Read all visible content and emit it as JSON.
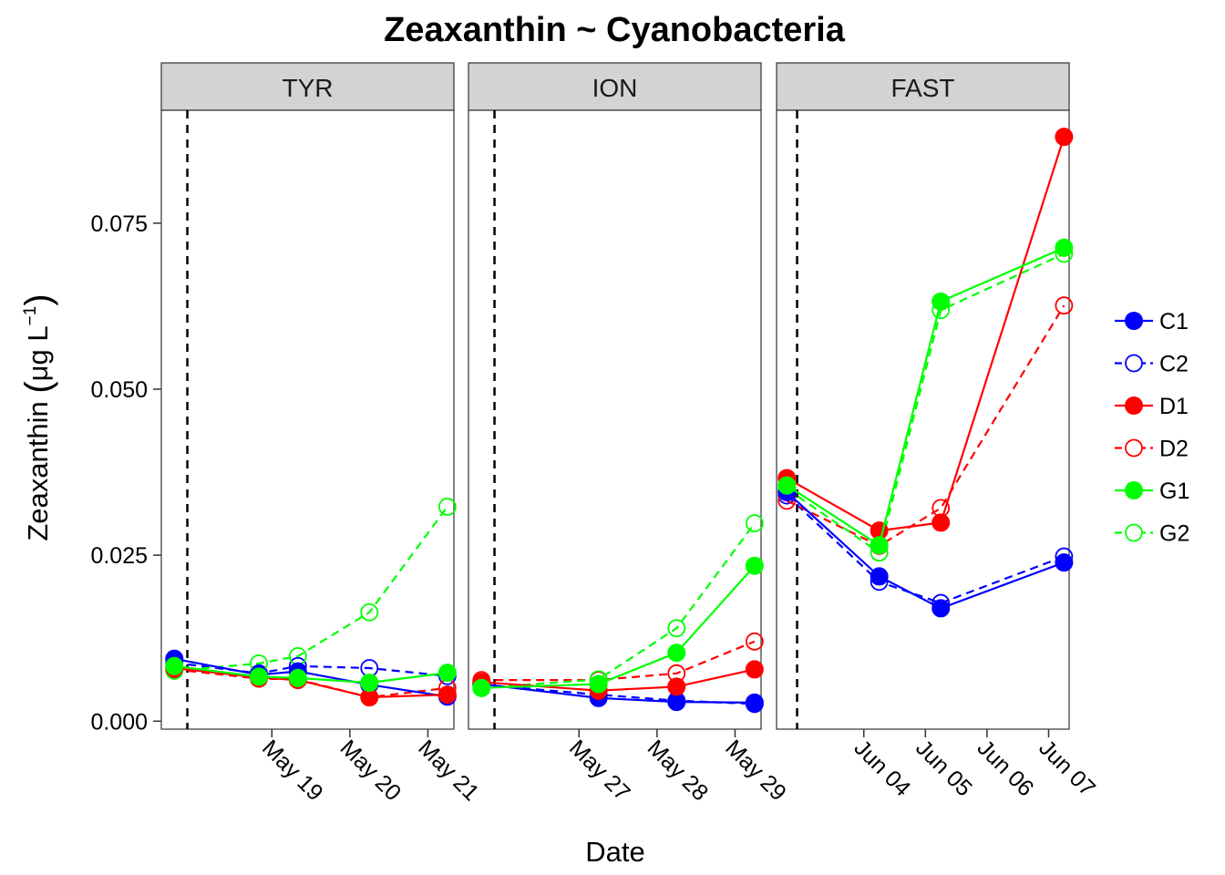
{
  "chart_data": {
    "type": "line",
    "title": "Zeaxanthin ~ Cyanobacteria",
    "xlabel": "Date",
    "ylabel": "Zeaxanthin (μg L−1)",
    "ylabel_parts": {
      "main": "Zeaxanthin ",
      "open": "(",
      "unit": "μg L",
      "sup": "−1",
      "close": ")"
    },
    "y_ticks": [
      "0.000",
      "0.025",
      "0.050",
      "0.075"
    ],
    "ylim": [
      -0.0012,
      0.092
    ],
    "grid": false,
    "legend_position": "right",
    "legend_items": [
      {
        "label": "C1",
        "color": "#0000ff",
        "filled": true,
        "dashed": false
      },
      {
        "label": "C2",
        "color": "#0000ff",
        "filled": false,
        "dashed": true
      },
      {
        "label": "D1",
        "color": "#ff0000",
        "filled": true,
        "dashed": false
      },
      {
        "label": "D2",
        "color": "#ff0000",
        "filled": false,
        "dashed": true
      },
      {
        "label": "G1",
        "color": "#00ff00",
        "filled": true,
        "dashed": false
      },
      {
        "label": "G2",
        "color": "#00ff00",
        "filled": false,
        "dashed": true
      }
    ],
    "panels": [
      {
        "strip": "TYR",
        "xlim": [
          "2016-05-17 14:00",
          "2016-05-21 08:00"
        ],
        "x_ticks": [
          {
            "x": "2016-05-19",
            "label": "May 19"
          },
          {
            "x": "2016-05-20",
            "label": "May 20"
          },
          {
            "x": "2016-05-21",
            "label": "May 21"
          }
        ],
        "vline": "2016-05-17 22:00",
        "series": [
          {
            "name": "C1",
            "x": [
              "2016-05-17 18:00",
              "2016-05-18 20:00",
              "2016-05-19 08:00",
              "2016-05-20 06:00",
              "2016-05-21 06:00"
            ],
            "y": [
              0.0094,
              0.007,
              0.0075,
              0.0055,
              0.0037
            ]
          },
          {
            "name": "C2",
            "x": [
              "2016-05-17 18:00",
              "2016-05-18 20:00",
              "2016-05-19 08:00",
              "2016-05-20 06:00",
              "2016-05-21 06:00"
            ],
            "y": [
              0.0088,
              0.0072,
              0.0083,
              0.008,
              0.0068
            ]
          },
          {
            "name": "D1",
            "x": [
              "2016-05-17 18:00",
              "2016-05-18 20:00",
              "2016-05-19 08:00",
              "2016-05-20 06:00",
              "2016-05-21 06:00"
            ],
            "y": [
              0.008,
              0.0066,
              0.0062,
              0.0036,
              0.004
            ]
          },
          {
            "name": "D2",
            "x": [
              "2016-05-17 18:00",
              "2016-05-18 20:00",
              "2016-05-19 08:00",
              "2016-05-20 06:00",
              "2016-05-21 06:00"
            ],
            "y": [
              0.0078,
              0.0064,
              0.0063,
              0.0036,
              0.005
            ]
          },
          {
            "name": "G1",
            "x": [
              "2016-05-17 18:00",
              "2016-05-18 20:00",
              "2016-05-19 08:00",
              "2016-05-20 06:00",
              "2016-05-21 06:00"
            ],
            "y": [
              0.0083,
              0.0067,
              0.0065,
              0.0058,
              0.0073
            ]
          },
          {
            "name": "G2",
            "x": [
              "2016-05-17 18:00",
              "2016-05-18 20:00",
              "2016-05-19 08:00",
              "2016-05-20 06:00",
              "2016-05-21 06:00"
            ],
            "y": [
              0.0076,
              0.0087,
              0.0098,
              0.0164,
              0.0323
            ]
          }
        ]
      },
      {
        "strip": "ION",
        "xlim": [
          "2016-05-25 14:00",
          "2016-05-29 08:00"
        ],
        "x_ticks": [
          {
            "x": "2016-05-27",
            "label": "May 27"
          },
          {
            "x": "2016-05-28",
            "label": "May 28"
          },
          {
            "x": "2016-05-29",
            "label": "May 29"
          }
        ],
        "vline": "2016-05-25 22:00",
        "series": [
          {
            "name": "C1",
            "x": [
              "2016-05-25 18:00",
              "2016-05-27 06:00",
              "2016-05-28 06:00",
              "2016-05-29 06:00"
            ],
            "y": [
              0.0056,
              0.0035,
              0.0029,
              0.0028
            ]
          },
          {
            "name": "C2",
            "x": [
              "2016-05-25 18:00",
              "2016-05-27 06:00",
              "2016-05-28 06:00",
              "2016-05-29 06:00"
            ],
            "y": [
              0.0055,
              0.004,
              0.0031,
              0.0026
            ]
          },
          {
            "name": "D1",
            "x": [
              "2016-05-25 18:00",
              "2016-05-27 06:00",
              "2016-05-28 06:00",
              "2016-05-29 06:00"
            ],
            "y": [
              0.0059,
              0.0046,
              0.0052,
              0.0078
            ]
          },
          {
            "name": "D2",
            "x": [
              "2016-05-25 18:00",
              "2016-05-27 06:00",
              "2016-05-28 06:00",
              "2016-05-29 06:00"
            ],
            "y": [
              0.0062,
              0.0062,
              0.0072,
              0.012
            ]
          },
          {
            "name": "G1",
            "x": [
              "2016-05-25 18:00",
              "2016-05-27 06:00",
              "2016-05-28 06:00",
              "2016-05-29 06:00"
            ],
            "y": [
              0.005,
              0.0056,
              0.0103,
              0.0234
            ]
          },
          {
            "name": "G2",
            "x": [
              "2016-05-25 18:00",
              "2016-05-27 06:00",
              "2016-05-28 06:00",
              "2016-05-29 06:00"
            ],
            "y": [
              0.005,
              0.0063,
              0.014,
              0.0298
            ]
          }
        ]
      },
      {
        "strip": "FAST",
        "xlim": [
          "2016-06-02 14:00",
          "2016-06-07 08:00"
        ],
        "x_ticks": [
          {
            "x": "2016-06-04",
            "label": "Jun 04"
          },
          {
            "x": "2016-06-05",
            "label": "Jun 05"
          },
          {
            "x": "2016-06-06",
            "label": "Jun 06"
          },
          {
            "x": "2016-06-07",
            "label": "Jun 07"
          }
        ],
        "vline": "2016-06-02 22:00",
        "series": [
          {
            "name": "C1",
            "x": [
              "2016-06-02 18:00",
              "2016-06-04 06:00",
              "2016-06-05 06:00",
              "2016-06-07 06:00"
            ],
            "y": [
              0.0345,
              0.0218,
              0.017,
              0.0239
            ]
          },
          {
            "name": "C2",
            "x": [
              "2016-06-02 18:00",
              "2016-06-04 06:00",
              "2016-06-05 06:00",
              "2016-06-07 06:00"
            ],
            "y": [
              0.034,
              0.021,
              0.0178,
              0.0248
            ]
          },
          {
            "name": "D1",
            "x": [
              "2016-06-02 18:00",
              "2016-06-04 06:00",
              "2016-06-05 06:00",
              "2016-06-07 06:00"
            ],
            "y": [
              0.0366,
              0.0287,
              0.0299,
              0.088
            ]
          },
          {
            "name": "D2",
            "x": [
              "2016-06-02 18:00",
              "2016-06-04 06:00",
              "2016-06-05 06:00",
              "2016-06-07 06:00"
            ],
            "y": [
              0.0332,
              0.0264,
              0.0321,
              0.0626
            ]
          },
          {
            "name": "G1",
            "x": [
              "2016-06-02 18:00",
              "2016-06-04 06:00",
              "2016-06-05 06:00",
              "2016-06-07 06:00"
            ],
            "y": [
              0.0355,
              0.0265,
              0.0632,
              0.0713
            ]
          },
          {
            "name": "G2",
            "x": [
              "2016-06-02 18:00",
              "2016-06-04 06:00",
              "2016-06-05 06:00",
              "2016-06-07 06:00"
            ],
            "y": [
              0.035,
              0.0254,
              0.0619,
              0.0704
            ]
          }
        ]
      }
    ]
  }
}
